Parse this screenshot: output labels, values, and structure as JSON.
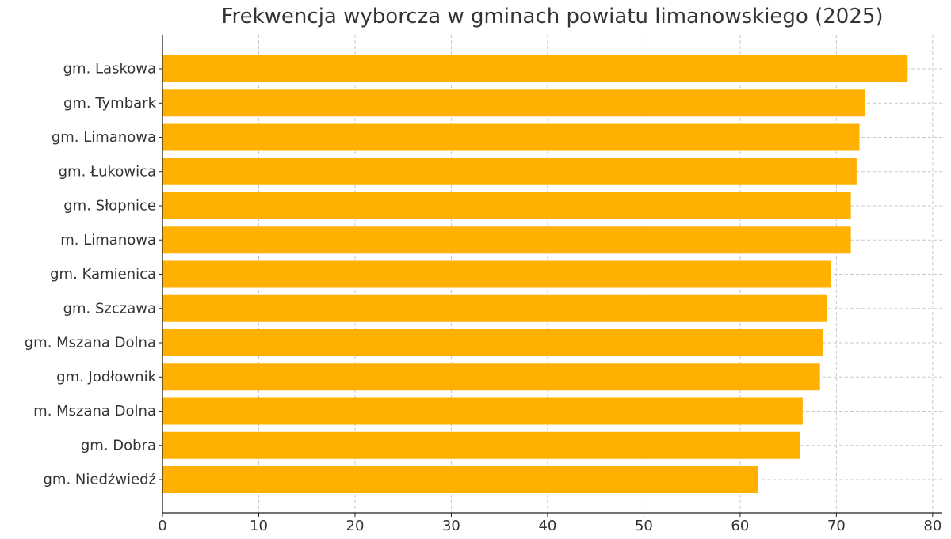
{
  "chart_data": {
    "type": "bar",
    "orientation": "horizontal",
    "title": "Frekwencja wyborcza w gminach powiatu limanowskiego (2025)",
    "xlabel": "",
    "ylabel": "",
    "categories": [
      "gm. Laskowa",
      "gm. Tymbark",
      "gm. Limanowa",
      "gm. Łukowica",
      "gm. Słopnice",
      "m. Limanowa",
      "gm. Kamienica",
      "gm. Szczawa",
      "gm. Mszana Dolna",
      "gm. Jodłownik",
      "m. Mszana Dolna",
      "gm. Dobra",
      "gm. Niedźwiedź"
    ],
    "values": [
      77.4,
      73.0,
      72.4,
      72.1,
      71.5,
      71.5,
      69.4,
      69.0,
      68.6,
      68.3,
      66.5,
      66.2,
      61.9
    ],
    "xlim": [
      0,
      81
    ],
    "xticks": [
      0,
      10,
      20,
      30,
      40,
      50,
      60,
      70,
      80
    ],
    "grid": true,
    "bar_color": "#FFB000"
  }
}
